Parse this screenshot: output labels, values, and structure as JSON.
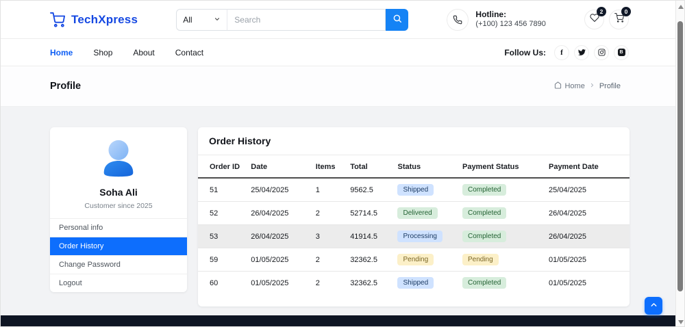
{
  "brand": {
    "name": "TechXpress",
    "color": "#1548e2"
  },
  "header": {
    "search": {
      "category": "All",
      "placeholder": "Search"
    },
    "hotline": {
      "label": "Hotline:",
      "number": "(+100) 123 456 7890"
    },
    "wishlist_count": "2",
    "cart_count": "0"
  },
  "nav": {
    "items": [
      {
        "label": "Home",
        "active": true
      },
      {
        "label": "Shop",
        "active": false
      },
      {
        "label": "About",
        "active": false
      },
      {
        "label": "Contact",
        "active": false
      }
    ],
    "follow_label": "Follow Us:",
    "social": [
      "facebook",
      "twitter",
      "instagram",
      "behance"
    ]
  },
  "hero": {
    "title": "Profile",
    "breadcrumb": {
      "home": "Home",
      "current": "Profile"
    }
  },
  "profile": {
    "name": "Soha Ali",
    "subtitle": "Customer since 2025",
    "menu": [
      {
        "label": "Personal info",
        "active": false
      },
      {
        "label": "Order History",
        "active": true
      },
      {
        "label": "Change Password",
        "active": false
      },
      {
        "label": "Logout",
        "active": false
      }
    ]
  },
  "orders": {
    "title": "Order History",
    "columns": [
      "Order ID",
      "Date",
      "Items",
      "Total",
      "Status",
      "Payment Status",
      "Payment Date"
    ],
    "rows": [
      {
        "id": "51",
        "date": "25/04/2025",
        "items": "1",
        "total": "9562.5",
        "status": "Shipped",
        "status_variant": "info",
        "payment_status": "Completed",
        "payment_variant": "success",
        "payment_date": "25/04/2025",
        "highlight": false
      },
      {
        "id": "52",
        "date": "26/04/2025",
        "items": "2",
        "total": "52714.5",
        "status": "Delivered",
        "status_variant": "success",
        "payment_status": "Completed",
        "payment_variant": "success",
        "payment_date": "26/04/2025",
        "highlight": false
      },
      {
        "id": "53",
        "date": "26/04/2025",
        "items": "3",
        "total": "41914.5",
        "status": "Processing",
        "status_variant": "info",
        "payment_status": "Completed",
        "payment_variant": "success",
        "payment_date": "26/04/2025",
        "highlight": true
      },
      {
        "id": "59",
        "date": "01/05/2025",
        "items": "2",
        "total": "32362.5",
        "status": "Pending",
        "status_variant": "warning",
        "payment_status": "Pending",
        "payment_variant": "warning",
        "payment_date": "01/05/2025",
        "highlight": false
      },
      {
        "id": "60",
        "date": "01/05/2025",
        "items": "2",
        "total": "32362.5",
        "status": "Shipped",
        "status_variant": "info",
        "payment_status": "Completed",
        "payment_variant": "success",
        "payment_date": "01/05/2025",
        "highlight": false
      }
    ]
  },
  "colors": {
    "brand_blue": "#1548e2",
    "primary": "#0d6efd",
    "search_button": "#1583f5",
    "badge_info_bg": "#cfe2ff",
    "badge_success_bg": "#d7eddc",
    "badge_warning_bg": "#fcf0c8",
    "footer_bar": "#0e1523",
    "row_highlight": "#ececec"
  }
}
